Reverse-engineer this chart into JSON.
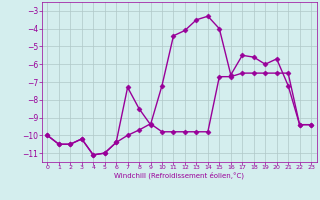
{
  "xlabel": "Windchill (Refroidissement éolien,°C)",
  "hours": [
    0,
    1,
    2,
    3,
    4,
    5,
    6,
    7,
    8,
    9,
    10,
    11,
    12,
    13,
    14,
    15,
    16,
    17,
    18,
    19,
    20,
    21,
    22,
    23
  ],
  "line1": [
    -10.0,
    -10.5,
    -10.5,
    -10.2,
    -11.1,
    -11.0,
    -10.4,
    -7.3,
    -8.5,
    -9.4,
    -7.2,
    -4.4,
    -4.1,
    -3.5,
    -3.3,
    -4.0,
    -6.6,
    -5.5,
    -5.6,
    -6.0,
    -5.7,
    -7.2,
    -9.4,
    -9.4
  ],
  "line2": [
    -10.0,
    -10.5,
    -10.5,
    -10.2,
    -11.1,
    -11.0,
    -10.4,
    -10.0,
    -9.7,
    -9.35,
    -9.8,
    -9.8,
    -9.8,
    -9.8,
    -9.8,
    -6.7,
    -6.7,
    -6.5,
    -6.5,
    -6.5,
    -6.5,
    -6.5,
    -9.4,
    -9.4
  ],
  "line_color": "#990099",
  "bg_color": "#d4eeee",
  "grid_color": "#b0c8c8",
  "ylim": [
    -11.5,
    -2.5
  ],
  "xlim": [
    -0.5,
    23.5
  ],
  "yticks": [
    -3,
    -4,
    -5,
    -6,
    -7,
    -8,
    -9,
    -10,
    -11
  ],
  "xticks": [
    0,
    1,
    2,
    3,
    4,
    5,
    6,
    7,
    8,
    9,
    10,
    11,
    12,
    13,
    14,
    15,
    16,
    17,
    18,
    19,
    20,
    21,
    22,
    23
  ],
  "marker": "D",
  "markersize": 2.5,
  "linewidth": 1.0
}
